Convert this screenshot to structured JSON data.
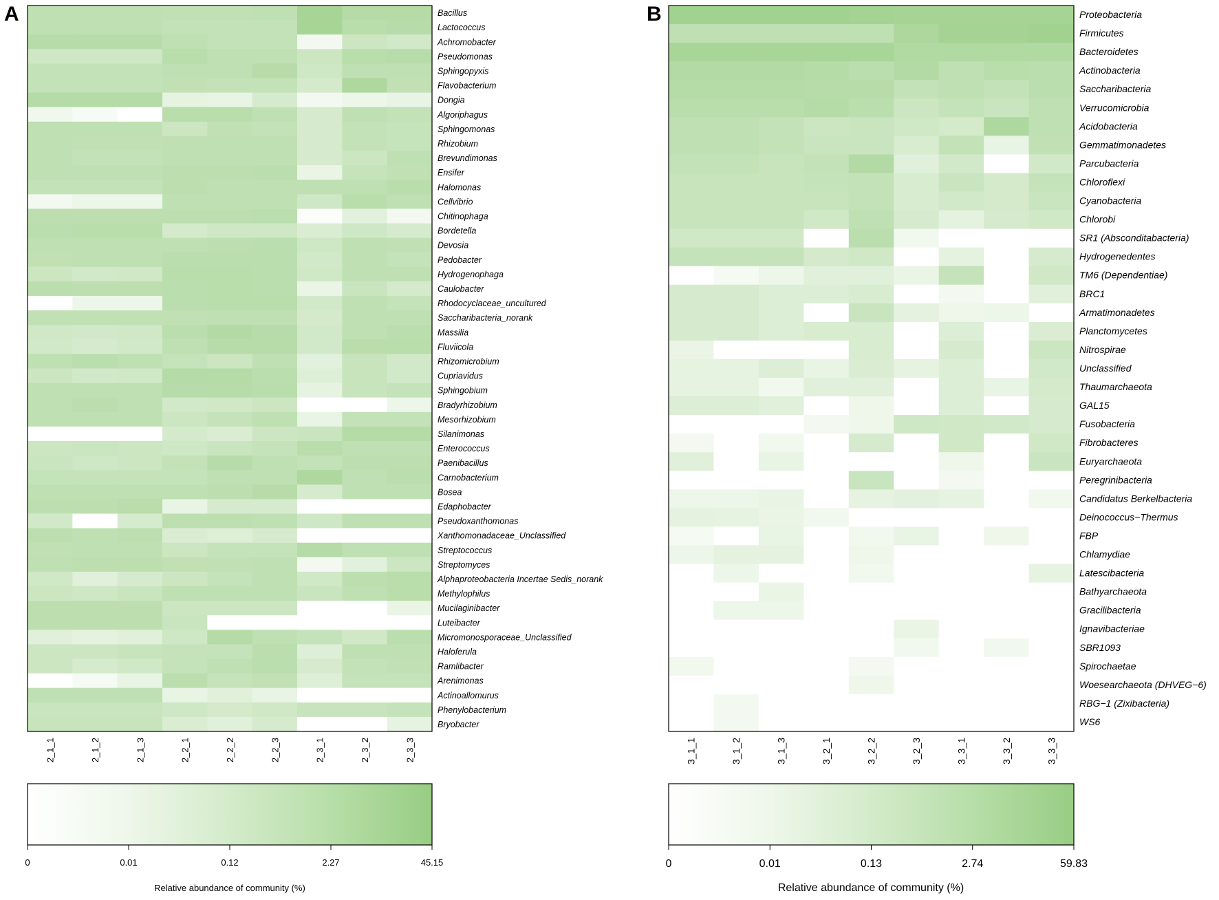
{
  "chart_data": [
    {
      "type": "heatmap",
      "panel": "A",
      "color_low": "#ffffff",
      "color_high": "#98cd84",
      "columns": [
        "2_1_1",
        "2_1_2",
        "2_1_3",
        "2_2_1",
        "2_2_2",
        "2_2_3",
        "2_3_1",
        "2_3_2",
        "2_3_3"
      ],
      "rows": [
        "Bacillus",
        "Lactococcus",
        "Achromobacter",
        "Pseudomonas",
        "Sphingopyxis",
        "Flavobacterium",
        "Dongia",
        "Algoriphagus",
        "Sphingomonas",
        "Rhizobium",
        "Brevundimonas",
        "Ensifer",
        "Halomonas",
        "Cellvibrio",
        "Chitinophaga",
        "Bordetella",
        "Devosia",
        "Pedobacter",
        "Hydrogenophaga",
        "Caulobacter",
        "Rhodocyclaceae_uncultured",
        "Saccharibacteria_norank",
        "Massilia",
        "Fluviicola",
        "Rhizomicrobium",
        "Cupriavidus",
        "Sphingobium",
        "Bradyrhizobium",
        "Mesorhizobium",
        "Silanimonas",
        "Enterococcus",
        "Paenibacillus",
        "Carnobacterium",
        "Bosea",
        "Edaphobacter",
        "Pseudoxanthomonas",
        "Xanthomonadaceae_Unclassified",
        "Streptococcus",
        "Streptomyces",
        "Alphaproteobacteria Incertae Sedis_norank",
        "Methylophilus",
        "Mucilaginibacter",
        "Luteibacter",
        "Micromonosporaceae_Unclassified",
        "Haloferula",
        "Ramlibacter",
        "Arenimonas",
        "Actinoallomurus",
        "Phenylobacterium",
        "Bryobacter"
      ],
      "values": [
        [
          0.62,
          0.62,
          0.62,
          0.6,
          0.6,
          0.62,
          0.85,
          0.72,
          0.72
        ],
        [
          0.62,
          0.62,
          0.62,
          0.58,
          0.58,
          0.58,
          0.85,
          0.68,
          0.7
        ],
        [
          0.7,
          0.7,
          0.7,
          0.62,
          0.58,
          0.58,
          0.12,
          0.5,
          0.45
        ],
        [
          0.48,
          0.48,
          0.48,
          0.68,
          0.62,
          0.62,
          0.5,
          0.68,
          0.7
        ],
        [
          0.58,
          0.58,
          0.58,
          0.62,
          0.62,
          0.7,
          0.48,
          0.62,
          0.62
        ],
        [
          0.58,
          0.58,
          0.58,
          0.6,
          0.58,
          0.58,
          0.42,
          0.78,
          0.6
        ],
        [
          0.72,
          0.72,
          0.72,
          0.25,
          0.22,
          0.4,
          0.12,
          0.18,
          0.22
        ],
        [
          0.15,
          0.08,
          0.0,
          0.68,
          0.68,
          0.62,
          0.4,
          0.62,
          0.58
        ],
        [
          0.62,
          0.62,
          0.62,
          0.5,
          0.6,
          0.58,
          0.4,
          0.58,
          0.55
        ],
        [
          0.62,
          0.6,
          0.6,
          0.62,
          0.62,
          0.62,
          0.4,
          0.58,
          0.55
        ],
        [
          0.62,
          0.58,
          0.58,
          0.62,
          0.62,
          0.62,
          0.4,
          0.5,
          0.62
        ],
        [
          0.62,
          0.62,
          0.62,
          0.64,
          0.64,
          0.66,
          0.2,
          0.55,
          0.6
        ],
        [
          0.58,
          0.58,
          0.58,
          0.64,
          0.62,
          0.62,
          0.62,
          0.62,
          0.68
        ],
        [
          0.12,
          0.18,
          0.18,
          0.62,
          0.62,
          0.62,
          0.48,
          0.68,
          0.62
        ],
        [
          0.64,
          0.64,
          0.64,
          0.64,
          0.64,
          0.66,
          0.05,
          0.28,
          0.12
        ],
        [
          0.66,
          0.68,
          0.68,
          0.42,
          0.48,
          0.48,
          0.36,
          0.48,
          0.4
        ],
        [
          0.62,
          0.62,
          0.62,
          0.62,
          0.64,
          0.66,
          0.48,
          0.62,
          0.6
        ],
        [
          0.6,
          0.62,
          0.62,
          0.66,
          0.66,
          0.66,
          0.44,
          0.62,
          0.56
        ],
        [
          0.5,
          0.44,
          0.46,
          0.68,
          0.68,
          0.66,
          0.46,
          0.62,
          0.62
        ],
        [
          0.66,
          0.64,
          0.64,
          0.66,
          0.68,
          0.66,
          0.2,
          0.52,
          0.42
        ],
        [
          0.0,
          0.18,
          0.18,
          0.66,
          0.68,
          0.68,
          0.44,
          0.62,
          0.56
        ],
        [
          0.6,
          0.6,
          0.6,
          0.6,
          0.62,
          0.62,
          0.42,
          0.62,
          0.62
        ],
        [
          0.46,
          0.44,
          0.46,
          0.66,
          0.74,
          0.7,
          0.44,
          0.62,
          0.66
        ],
        [
          0.44,
          0.4,
          0.44,
          0.62,
          0.7,
          0.7,
          0.44,
          0.68,
          0.68
        ],
        [
          0.62,
          0.66,
          0.62,
          0.56,
          0.5,
          0.62,
          0.28,
          0.54,
          0.44
        ],
        [
          0.5,
          0.44,
          0.46,
          0.72,
          0.72,
          0.66,
          0.32,
          0.54,
          0.44
        ],
        [
          0.62,
          0.62,
          0.62,
          0.7,
          0.7,
          0.68,
          0.24,
          0.54,
          0.56
        ],
        [
          0.62,
          0.66,
          0.62,
          0.44,
          0.46,
          0.5,
          0.0,
          0.0,
          0.18
        ],
        [
          0.62,
          0.62,
          0.62,
          0.5,
          0.56,
          0.62,
          0.22,
          0.58,
          0.58
        ],
        [
          0.0,
          0.0,
          0.0,
          0.42,
          0.36,
          0.5,
          0.52,
          0.72,
          0.72
        ],
        [
          0.5,
          0.52,
          0.5,
          0.48,
          0.52,
          0.56,
          0.68,
          0.62,
          0.62
        ],
        [
          0.52,
          0.48,
          0.5,
          0.58,
          0.7,
          0.62,
          0.58,
          0.64,
          0.64
        ],
        [
          0.56,
          0.56,
          0.56,
          0.56,
          0.62,
          0.62,
          0.78,
          0.62,
          0.66
        ],
        [
          0.62,
          0.62,
          0.62,
          0.62,
          0.64,
          0.7,
          0.4,
          0.62,
          0.62
        ],
        [
          0.64,
          0.64,
          0.68,
          0.22,
          0.4,
          0.4,
          0.0,
          0.0,
          0.0
        ],
        [
          0.44,
          0.0,
          0.4,
          0.64,
          0.64,
          0.62,
          0.48,
          0.62,
          0.62
        ],
        [
          0.64,
          0.62,
          0.64,
          0.36,
          0.32,
          0.4,
          0.0,
          0.0,
          0.0
        ],
        [
          0.6,
          0.62,
          0.62,
          0.5,
          0.56,
          0.56,
          0.72,
          0.62,
          0.62
        ],
        [
          0.62,
          0.64,
          0.64,
          0.6,
          0.6,
          0.62,
          0.12,
          0.28,
          0.5
        ],
        [
          0.46,
          0.3,
          0.4,
          0.5,
          0.56,
          0.62,
          0.46,
          0.64,
          0.68
        ],
        [
          0.5,
          0.48,
          0.52,
          0.62,
          0.62,
          0.62,
          0.52,
          0.62,
          0.68
        ],
        [
          0.64,
          0.64,
          0.64,
          0.5,
          0.5,
          0.5,
          0.0,
          0.0,
          0.2
        ],
        [
          0.64,
          0.64,
          0.64,
          0.52,
          0.0,
          0.0,
          0.0,
          0.0,
          0.0
        ],
        [
          0.3,
          0.26,
          0.3,
          0.48,
          0.72,
          0.62,
          0.56,
          0.46,
          0.66
        ],
        [
          0.5,
          0.5,
          0.54,
          0.56,
          0.56,
          0.66,
          0.32,
          0.62,
          0.62
        ],
        [
          0.5,
          0.4,
          0.46,
          0.56,
          0.62,
          0.66,
          0.4,
          0.58,
          0.6
        ],
        [
          0.0,
          0.1,
          0.22,
          0.66,
          0.56,
          0.6,
          0.32,
          0.56,
          0.56
        ],
        [
          0.62,
          0.62,
          0.62,
          0.22,
          0.3,
          0.22,
          0.0,
          0.0,
          0.0
        ],
        [
          0.52,
          0.52,
          0.52,
          0.48,
          0.42,
          0.46,
          0.54,
          0.54,
          0.56
        ],
        [
          0.54,
          0.54,
          0.54,
          0.36,
          0.3,
          0.4,
          0.0,
          0.0,
          0.24
        ]
      ],
      "colorbar": {
        "ticks": [
          "0",
          "0.01",
          "0.12",
          "2.27",
          "45.15"
        ],
        "label": "Relative abundance of community (%)"
      }
    },
    {
      "type": "heatmap",
      "panel": "B",
      "color_low": "#ffffff",
      "color_high": "#98cd84",
      "columns": [
        "3_1_1",
        "3_1_2",
        "3_1_3",
        "3_2_1",
        "3_2_2",
        "3_2_3",
        "3_3_1",
        "3_3_2",
        "3_3_3"
      ],
      "rows": [
        "Proteobacteria",
        "Firmicutes",
        "Bacteroidetes",
        "Actinobacteria",
        "Saccharibacteria",
        "Verrucomicrobia",
        "Acidobacteria",
        "Gemmatimonadetes",
        "Parcubacteria",
        "Chloroflexi",
        "Cyanobacteria",
        "Chlorobi",
        "SR1 (Absconditabacteria)",
        "Hydrogenedentes",
        "TM6 (Dependentiae)",
        "BRC1",
        "Armatimonadetes",
        "Planctomycetes",
        "Nitrospirae",
        "Unclassified",
        "Thaumarchaeota",
        "GAL15",
        "Fusobacteria",
        "Fibrobacteres",
        "Euryarchaeota",
        "Peregrinibacteria",
        "Candidatus Berkelbacteria",
        "Deinococcus−Thermus",
        "FBP",
        "Chlamydiae",
        "Latescibacteria",
        "Bathyarchaeota",
        "Gracilibacteria",
        "Ignavibacteriae",
        "SBR1093",
        "Spirochaetae",
        "Woesearchaeota (DHVEG−6)",
        "RBG−1 (Zixibacteria)",
        "WS6"
      ],
      "values": [
        [
          0.9,
          0.9,
          0.9,
          0.9,
          0.88,
          0.86,
          0.86,
          0.86,
          0.86
        ],
        [
          0.62,
          0.62,
          0.62,
          0.62,
          0.62,
          0.8,
          0.88,
          0.88,
          0.9
        ],
        [
          0.84,
          0.84,
          0.84,
          0.84,
          0.84,
          0.76,
          0.76,
          0.76,
          0.76
        ],
        [
          0.74,
          0.74,
          0.74,
          0.72,
          0.66,
          0.74,
          0.62,
          0.68,
          0.66
        ],
        [
          0.72,
          0.72,
          0.72,
          0.7,
          0.7,
          0.58,
          0.62,
          0.58,
          0.66
        ],
        [
          0.68,
          0.68,
          0.68,
          0.72,
          0.66,
          0.5,
          0.56,
          0.52,
          0.62
        ],
        [
          0.62,
          0.62,
          0.58,
          0.5,
          0.52,
          0.46,
          0.42,
          0.78,
          0.62
        ],
        [
          0.62,
          0.62,
          0.58,
          0.52,
          0.52,
          0.38,
          0.58,
          0.22,
          0.6
        ],
        [
          0.58,
          0.58,
          0.54,
          0.58,
          0.74,
          0.3,
          0.44,
          0.0,
          0.44
        ],
        [
          0.54,
          0.54,
          0.54,
          0.56,
          0.58,
          0.38,
          0.52,
          0.42,
          0.56
        ],
        [
          0.54,
          0.54,
          0.54,
          0.54,
          0.58,
          0.38,
          0.44,
          0.42,
          0.52
        ],
        [
          0.54,
          0.54,
          0.54,
          0.46,
          0.62,
          0.4,
          0.26,
          0.4,
          0.46
        ],
        [
          0.46,
          0.46,
          0.46,
          0.0,
          0.66,
          0.14,
          0.0,
          0.0,
          0.0
        ],
        [
          0.56,
          0.56,
          0.56,
          0.42,
          0.46,
          0.0,
          0.26,
          0.0,
          0.4
        ],
        [
          0.0,
          0.1,
          0.18,
          0.3,
          0.3,
          0.2,
          0.56,
          0.0,
          0.46
        ],
        [
          0.4,
          0.4,
          0.34,
          0.34,
          0.38,
          0.0,
          0.12,
          0.0,
          0.3
        ],
        [
          0.4,
          0.4,
          0.34,
          0.0,
          0.52,
          0.26,
          0.16,
          0.18,
          0.0
        ],
        [
          0.4,
          0.4,
          0.34,
          0.38,
          0.38,
          0.0,
          0.34,
          0.0,
          0.36
        ],
        [
          0.2,
          0.0,
          0.0,
          0.0,
          0.38,
          0.0,
          0.4,
          0.0,
          0.5
        ],
        [
          0.24,
          0.24,
          0.34,
          0.22,
          0.36,
          0.24,
          0.34,
          0.0,
          0.44
        ],
        [
          0.24,
          0.24,
          0.14,
          0.3,
          0.3,
          0.0,
          0.34,
          0.22,
          0.42
        ],
        [
          0.34,
          0.34,
          0.3,
          0.0,
          0.16,
          0.0,
          0.34,
          0.0,
          0.4
        ],
        [
          0.0,
          0.0,
          0.0,
          0.12,
          0.16,
          0.48,
          0.46,
          0.44,
          0.4
        ],
        [
          0.12,
          0.0,
          0.14,
          0.0,
          0.4,
          0.0,
          0.46,
          0.0,
          0.46
        ],
        [
          0.3,
          0.0,
          0.22,
          0.0,
          0.0,
          0.0,
          0.16,
          0.0,
          0.52
        ],
        [
          0.0,
          0.0,
          0.0,
          0.0,
          0.52,
          0.0,
          0.12,
          0.0,
          0.0
        ],
        [
          0.18,
          0.18,
          0.22,
          0.0,
          0.24,
          0.28,
          0.24,
          0.0,
          0.14
        ],
        [
          0.26,
          0.24,
          0.2,
          0.14,
          0.0,
          0.0,
          0.0,
          0.0,
          0.0
        ],
        [
          0.1,
          0.0,
          0.22,
          0.0,
          0.14,
          0.22,
          0.0,
          0.16,
          0.0
        ],
        [
          0.18,
          0.26,
          0.26,
          0.0,
          0.16,
          0.0,
          0.0,
          0.0,
          0.0
        ],
        [
          0.0,
          0.18,
          0.0,
          0.0,
          0.14,
          0.0,
          0.0,
          0.0,
          0.24
        ],
        [
          0.0,
          0.0,
          0.2,
          0.0,
          0.0,
          0.0,
          0.0,
          0.0,
          0.0
        ],
        [
          0.0,
          0.18,
          0.18,
          0.0,
          0.0,
          0.0,
          0.0,
          0.0,
          0.0
        ],
        [
          0.0,
          0.0,
          0.0,
          0.0,
          0.0,
          0.2,
          0.0,
          0.0,
          0.0
        ],
        [
          0.0,
          0.0,
          0.0,
          0.0,
          0.0,
          0.14,
          0.0,
          0.14,
          0.0
        ],
        [
          0.14,
          0.0,
          0.0,
          0.0,
          0.12,
          0.0,
          0.0,
          0.0,
          0.0
        ],
        [
          0.0,
          0.0,
          0.0,
          0.0,
          0.16,
          0.0,
          0.0,
          0.0,
          0.0
        ],
        [
          0.0,
          0.12,
          0.0,
          0.0,
          0.0,
          0.0,
          0.0,
          0.0,
          0.0
        ],
        [
          0.0,
          0.12,
          0.0,
          0.0,
          0.0,
          0.0,
          0.0,
          0.0,
          0.0
        ]
      ],
      "colorbar": {
        "ticks": [
          "0",
          "0.01",
          "0.13",
          "2.74",
          "59.83"
        ],
        "label": "Relative abundance of community (%)"
      }
    }
  ]
}
